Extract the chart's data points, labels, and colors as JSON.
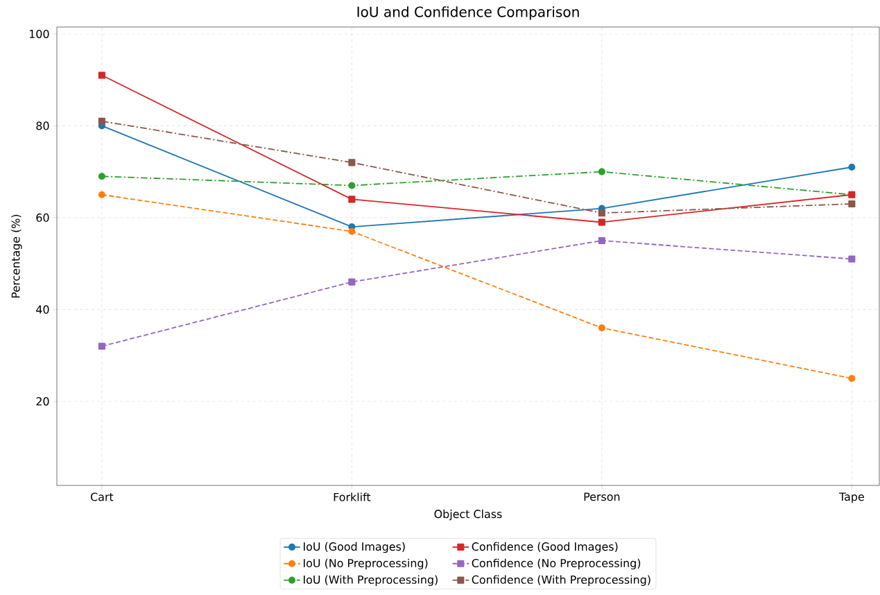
{
  "chart_data": {
    "type": "line",
    "title": "IoU and Confidence Comparison",
    "xlabel": "Object Class",
    "ylabel": "Percentage (%)",
    "categories": [
      "Cart",
      "Forklift",
      "Person",
      "Tape"
    ],
    "series": [
      {
        "name": "IoU (Good Images)",
        "color": "#1f77b4",
        "marker": "circle",
        "line_style": "solid",
        "values": [
          80,
          58,
          62,
          71
        ]
      },
      {
        "name": "IoU (No Preprocessing)",
        "color": "#ff7f0e",
        "marker": "circle",
        "line_style": "dashed",
        "values": [
          65,
          57,
          36,
          25
        ]
      },
      {
        "name": "IoU (With Preprocessing)",
        "color": "#2ca02c",
        "marker": "circle",
        "line_style": "dashdot",
        "values": [
          69,
          67,
          70,
          65
        ]
      },
      {
        "name": "Confidence (Good Images)",
        "color": "#d62728",
        "marker": "square",
        "line_style": "solid",
        "values": [
          91,
          64,
          59,
          65
        ]
      },
      {
        "name": "Confidence (No Preprocessing)",
        "color": "#9467bd",
        "marker": "square",
        "line_style": "dashed",
        "values": [
          32,
          46,
          55,
          51
        ]
      },
      {
        "name": "Confidence (With Preprocessing)",
        "color": "#8c564b",
        "marker": "square",
        "line_style": "dashdot",
        "values": [
          81,
          72,
          61,
          63
        ]
      }
    ],
    "ylim": [
      1.7,
      101.5
    ],
    "yticks": [
      20,
      40,
      60,
      80,
      100
    ],
    "grid": true,
    "legend": "bottom"
  }
}
